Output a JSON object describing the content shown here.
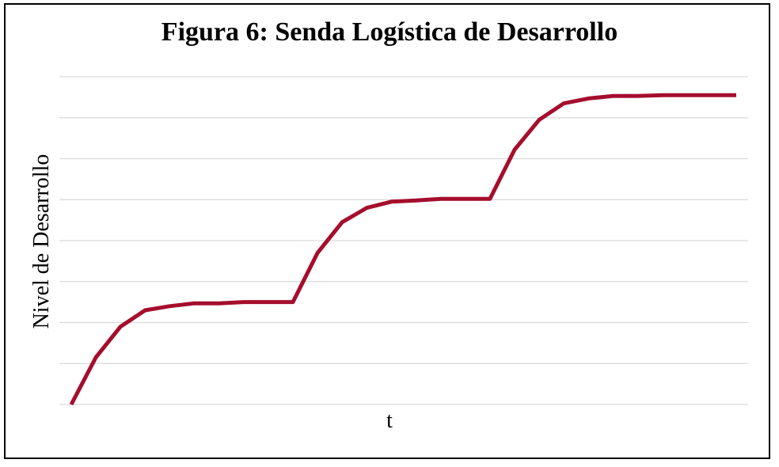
{
  "chart_data": {
    "type": "line",
    "title": "Figura 6: Senda Logística de Desarrollo",
    "xlabel": "t",
    "ylabel": "Nivel de Desarrollo",
    "grid": true,
    "legend": "none",
    "ylim": [
      0,
      8
    ],
    "x": [
      0,
      1,
      2,
      3,
      4,
      5,
      6,
      7,
      8,
      9,
      10,
      11,
      12,
      13,
      14,
      15,
      16,
      17,
      18,
      19,
      20,
      21,
      22,
      23,
      24,
      25,
      26,
      27
    ],
    "series": [
      {
        "color": "#A50E2D",
        "values": [
          0,
          1.15,
          1.9,
          2.3,
          2.4,
          2.47,
          2.47,
          2.5,
          2.5,
          2.5,
          3.7,
          4.45,
          4.8,
          4.95,
          4.98,
          5.02,
          5.02,
          5.02,
          6.22,
          6.95,
          7.35,
          7.47,
          7.53,
          7.53,
          7.55,
          7.55,
          7.55,
          7.55
        ]
      }
    ]
  }
}
